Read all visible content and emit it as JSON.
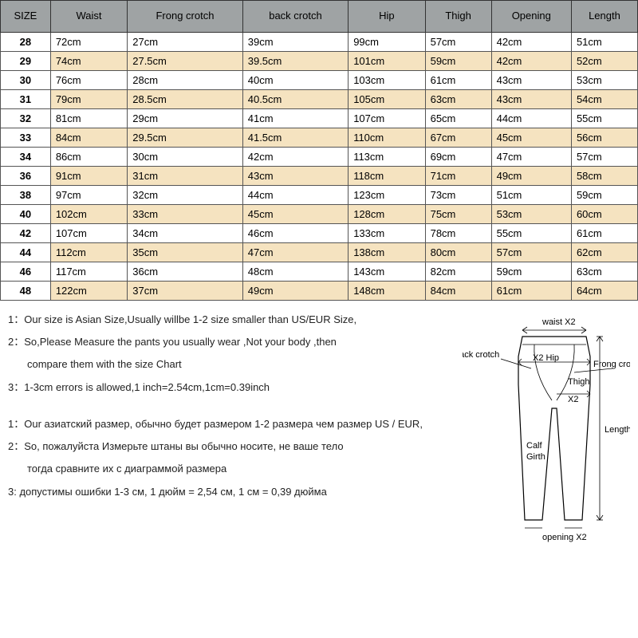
{
  "table": {
    "header_bg": "#9fa3a4",
    "row_alt_bg": "#f5e3c0",
    "row_bg": "#ffffff",
    "border_color": "#555555",
    "columns": [
      "SIZE",
      "Waist",
      "Frong crotch",
      "back crotch",
      "Hip",
      "Thigh",
      "Opening",
      "Length"
    ],
    "rows": [
      [
        "28",
        "72cm",
        "27cm",
        "39cm",
        "99cm",
        "57cm",
        "42cm",
        "51cm"
      ],
      [
        "29",
        "74cm",
        "27.5cm",
        "39.5cm",
        "101cm",
        "59cm",
        "42cm",
        "52cm"
      ],
      [
        "30",
        "76cm",
        "28cm",
        "40cm",
        "103cm",
        "61cm",
        "43cm",
        "53cm"
      ],
      [
        "31",
        "79cm",
        "28.5cm",
        "40.5cm",
        "105cm",
        "63cm",
        "43cm",
        "54cm"
      ],
      [
        "32",
        "81cm",
        "29cm",
        "41cm",
        "107cm",
        "65cm",
        "44cm",
        "55cm"
      ],
      [
        "33",
        "84cm",
        "29.5cm",
        "41.5cm",
        "110cm",
        "67cm",
        "45cm",
        "56cm"
      ],
      [
        "34",
        "86cm",
        "30cm",
        "42cm",
        "113cm",
        "69cm",
        "47cm",
        "57cm"
      ],
      [
        "36",
        "91cm",
        "31cm",
        "43cm",
        "118cm",
        "71cm",
        "49cm",
        "58cm"
      ],
      [
        "38",
        "97cm",
        "32cm",
        "44cm",
        "123cm",
        "73cm",
        "51cm",
        "59cm"
      ],
      [
        "40",
        "102cm",
        "33cm",
        "45cm",
        "128cm",
        "75cm",
        "53cm",
        "60cm"
      ],
      [
        "42",
        "107cm",
        "34cm",
        "46cm",
        "133cm",
        "78cm",
        "55cm",
        "61cm"
      ],
      [
        "44",
        "112cm",
        "35cm",
        "47cm",
        "138cm",
        "80cm",
        "57cm",
        "62cm"
      ],
      [
        "46",
        "117cm",
        "36cm",
        "48cm",
        "143cm",
        "82cm",
        "59cm",
        "63cm"
      ],
      [
        "48",
        "122cm",
        "37cm",
        "49cm",
        "148cm",
        "84cm",
        "61cm",
        "64cm"
      ]
    ]
  },
  "notes_en": {
    "n1": "1：Our size is Asian Size,Usually willbe 1-2 size smaller than US/EUR Size,",
    "n2": "2：So,Please Measure the pants you usually wear ,Not your body ,then",
    "n2b": "compare them with the size Chart",
    "n3": "3：1-3cm errors is allowed,1 inch=2.54cm,1cm=0.39inch"
  },
  "notes_ru": {
    "n1": "1：Our азиатский размер, обычно будет размером 1-2 размера чем размер US / EUR,",
    "n2": "2：So, пожалуйста Измерьте штаны вы обычно носите, не ваше тело",
    "n2b": "тогда сравните их с диаграммой размера",
    "n3": "3: допустимы ошибки 1-3 см, 1 дюйм = 2,54 см, 1 см = 0,39 дюйма"
  },
  "diagram": {
    "waist": "waist X2",
    "back_crotch": "back  crotch",
    "front_crotch": "Frong crotch",
    "hip": "X2 Hip",
    "thigh": "Thigh",
    "thigh2": "X2",
    "length": "Length",
    "calf": "Calf",
    "girth": "Girth",
    "opening": "opening X2"
  }
}
